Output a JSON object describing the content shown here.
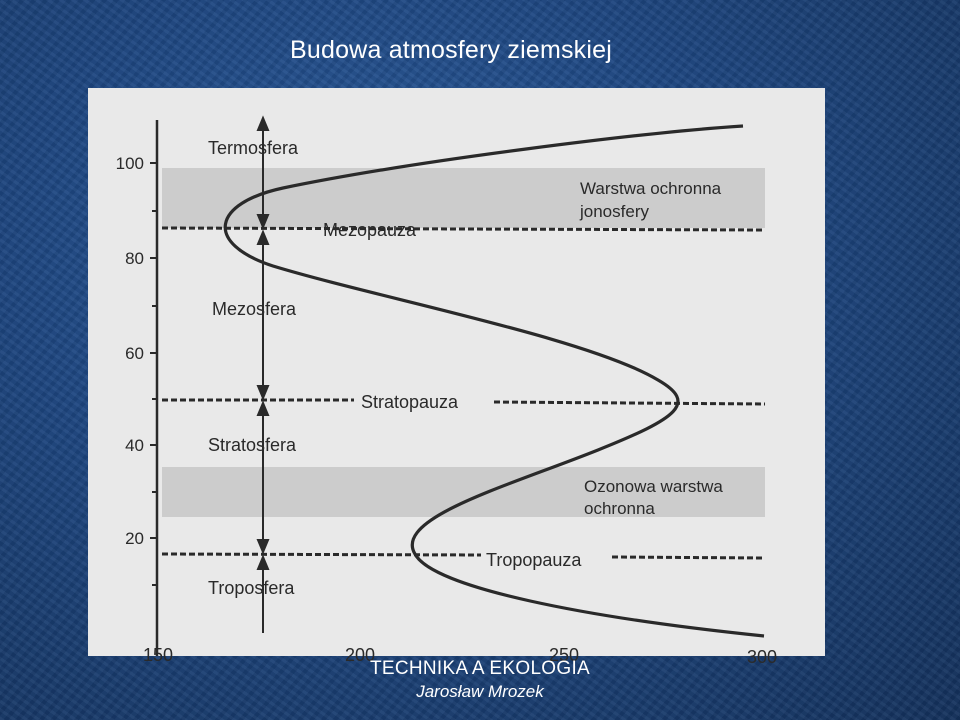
{
  "slide": {
    "title": "Budowa atmosfery ziemskiej",
    "footer_title": "TECHNIKA  A  EKOLOGIA",
    "footer_author": "Jarosław Mrozek"
  },
  "diagram": {
    "y_ticks": [
      "100",
      "80",
      "60",
      "40",
      "20"
    ],
    "x_ticks": [
      "150",
      "200",
      "250",
      "300"
    ],
    "layers": {
      "termosfera": "Termosfera",
      "mezosfera": "Mezosfera",
      "stratosfera": "Stratosfera",
      "troposfera": "Troposfera"
    },
    "boundaries": {
      "mezopauza": "Mezopauza",
      "stratopauza": "Stratopauza",
      "tropopauza": "Tropopauza"
    },
    "bands": {
      "jonosfera_line1": "Warstwa ochronna",
      "jonosfera_line2": "jonosfery",
      "ozon_line1": "Ozonowa warstwa",
      "ozon_line2": "ochronna"
    }
  },
  "colors": {
    "background": "#1d4680",
    "panel": "#e9e9e9",
    "band": "#c4c4c4",
    "ink": "#2a2a2a"
  }
}
